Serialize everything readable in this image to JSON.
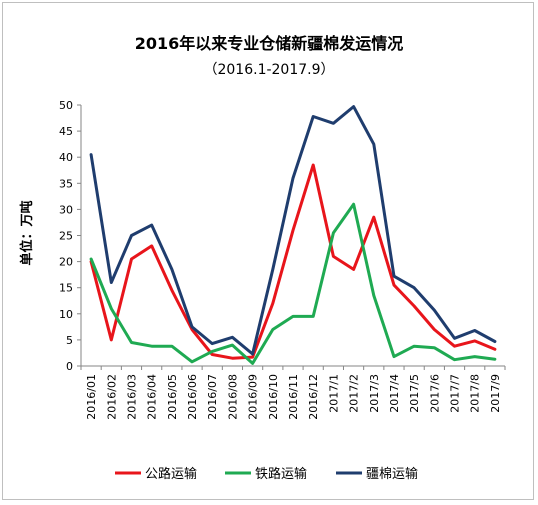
{
  "chart_data": {
    "type": "line",
    "title": "2016年以来专业仓储新疆棉发运情况",
    "subtitle": "（2016.1-2017.9）",
    "ylabel": "单位：万吨",
    "xlabel": "",
    "ylim": [
      0,
      50
    ],
    "yticks": [
      0,
      5,
      10,
      15,
      20,
      25,
      30,
      35,
      40,
      45,
      50
    ],
    "grid": false,
    "legend_position": "bottom",
    "categories": [
      "2016/01",
      "2016/02",
      "2016/03",
      "2016/04",
      "2016/05",
      "2016/06",
      "2016/07",
      "2016/08",
      "2016/09",
      "2016/10",
      "2016/11",
      "2016/12",
      "2017/1",
      "2017/2",
      "2017/3",
      "2017/4",
      "2017/5",
      "2017/6",
      "2017/7",
      "2017/8",
      "2017/9"
    ],
    "series": [
      {
        "name": "公路运输",
        "color": "#e8151b",
        "values": [
          20,
          5,
          20.5,
          23,
          14.5,
          7,
          2.2,
          1.5,
          1.7,
          12,
          26,
          38.5,
          21,
          18.5,
          28.5,
          15.5,
          11.5,
          7,
          3.8,
          4.8,
          3.2
        ]
      },
      {
        "name": "铁路运输",
        "color": "#1faa52",
        "values": [
          20.5,
          11,
          4.5,
          3.8,
          3.8,
          0.8,
          2.8,
          4,
          0.5,
          7,
          9.5,
          9.5,
          25.5,
          31,
          13.5,
          1.8,
          3.8,
          3.5,
          1.2,
          1.8,
          1.3
        ]
      },
      {
        "name": "疆棉运输",
        "color": "#1f3d6e",
        "values": [
          40.5,
          16,
          25,
          27,
          18.5,
          7.5,
          4.3,
          5.5,
          2.3,
          18.5,
          36,
          47.8,
          46.5,
          49.7,
          42.5,
          17.2,
          15,
          10.7,
          5.3,
          6.8,
          4.7
        ]
      }
    ]
  }
}
